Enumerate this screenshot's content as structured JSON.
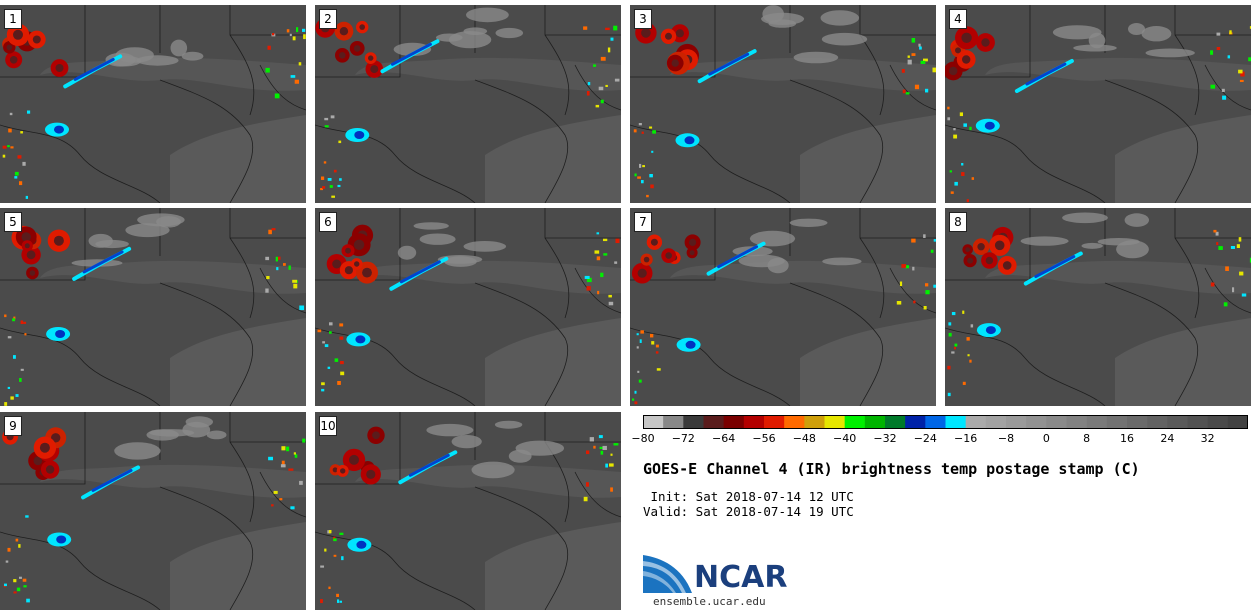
{
  "panels": [
    {
      "label": "1"
    },
    {
      "label": "2"
    },
    {
      "label": "3"
    },
    {
      "label": "4"
    },
    {
      "label": "5"
    },
    {
      "label": "6"
    },
    {
      "label": "7"
    },
    {
      "label": "8"
    },
    {
      "label": "9"
    },
    {
      "label": "10"
    }
  ],
  "colorbar": {
    "colors": [
      "#c6c6c6",
      "#888888",
      "#3a3a3a",
      "#5a1c1c",
      "#7a0000",
      "#b30000",
      "#e01b00",
      "#ff6a00",
      "#cf9f0a",
      "#e6e600",
      "#00f000",
      "#00b400",
      "#007a2a",
      "#0022a8",
      "#0066e6",
      "#00e6ff",
      "#aaaaaa",
      "#a2a2a2",
      "#9a9a9a",
      "#929292",
      "#8a8a8a",
      "#828282",
      "#7a7a7a",
      "#727272",
      "#6a6a6a",
      "#626262",
      "#5a5a5a",
      "#525252",
      "#4a4a4a",
      "#424242"
    ],
    "ticks": [
      "−80",
      "−72",
      "−64",
      "−56",
      "−48",
      "−40",
      "−32",
      "−24",
      "−16",
      "−8",
      "0",
      "8",
      "16",
      "24",
      "32"
    ]
  },
  "title": "GOES-E Channel 4 (IR) brightness temp postage stamp (C)",
  "init": " Init: Sat 2018-07-14 12 UTC",
  "valid": "Valid: Sat 2018-07-14 19 UTC",
  "logo": {
    "text": "NCAR",
    "url": "ensemble.ucar.edu"
  }
}
